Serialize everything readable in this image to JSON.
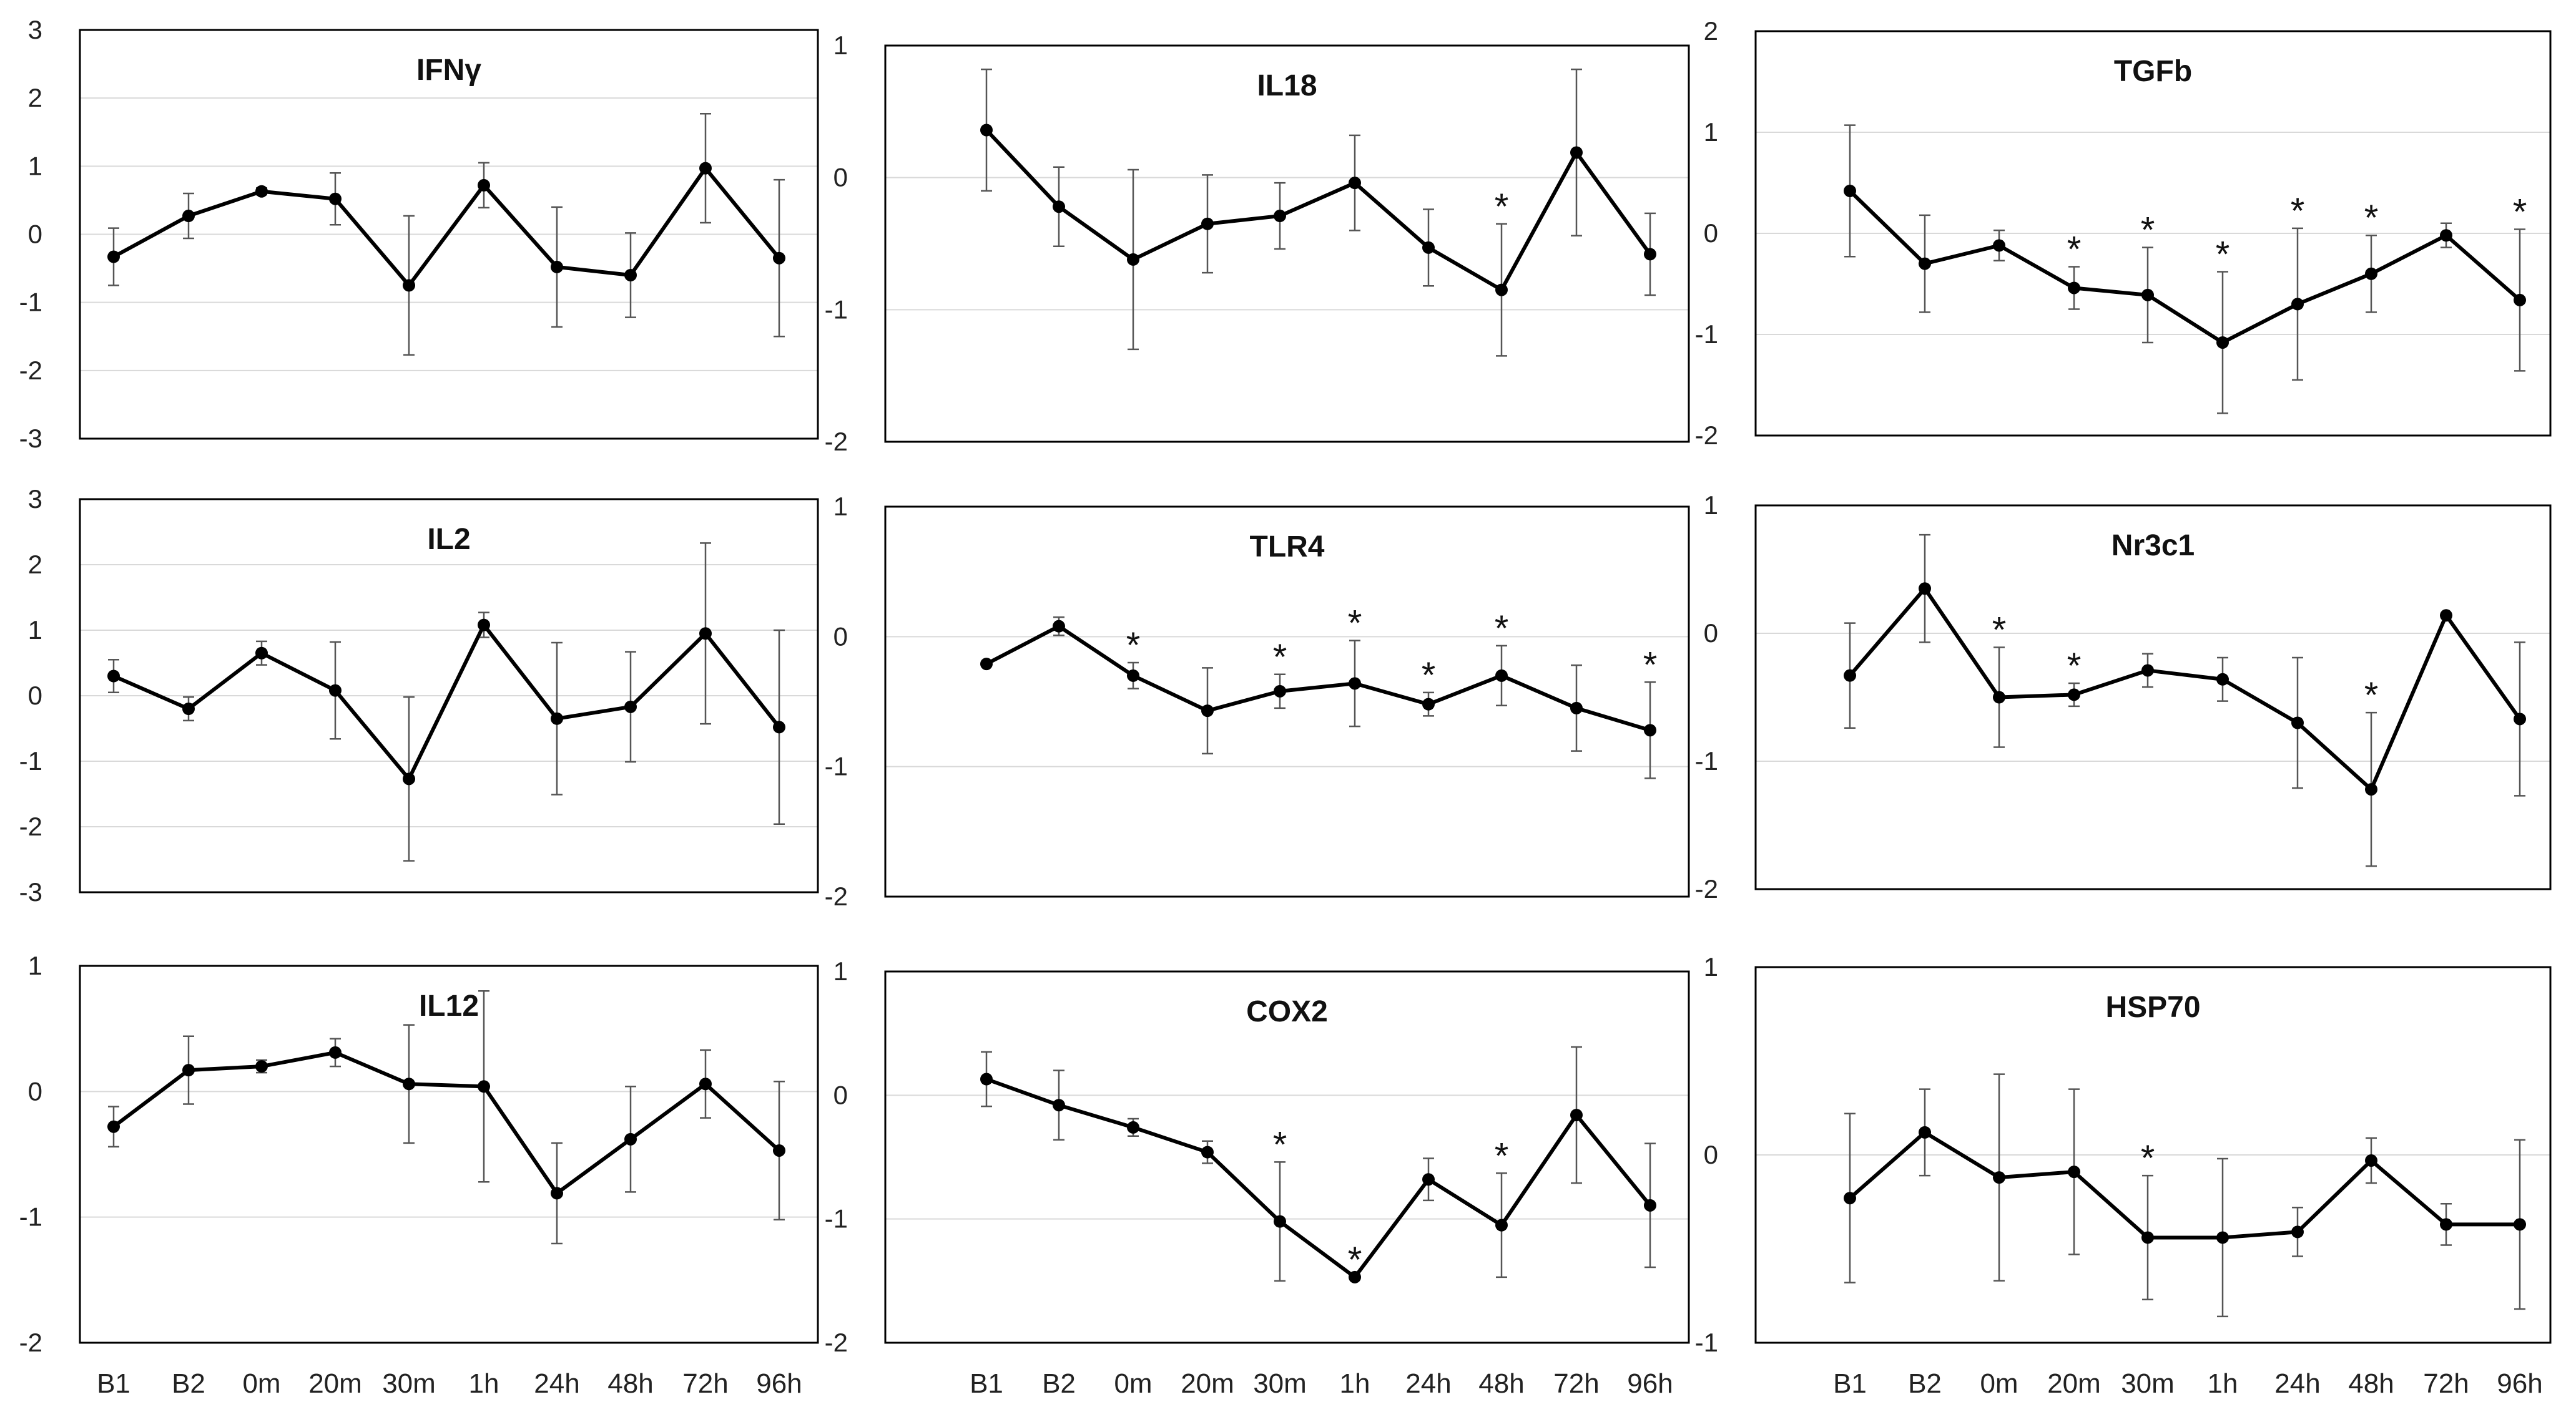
{
  "figure": {
    "categories": [
      "B1",
      "B2",
      "0m",
      "20m",
      "30m",
      "1h",
      "24h",
      "48h",
      "72h",
      "96h"
    ],
    "colors": {
      "line": "#000000",
      "errorbar": "#555555",
      "grid": "#d9d9d9",
      "frame": "#000000",
      "background": "#ffffff"
    }
  },
  "chart_data": [
    {
      "type": "line",
      "title": "IFNγ",
      "ylim": [
        -3,
        3
      ],
      "yticks": [
        3,
        2,
        1,
        0,
        -1,
        -2,
        -3
      ],
      "values": [
        -0.33,
        0.27,
        0.63,
        0.52,
        -0.75,
        0.72,
        -0.48,
        -0.6,
        0.97,
        -0.35
      ],
      "errors": [
        0.42,
        0.33,
        0.05,
        0.38,
        1.02,
        0.33,
        0.88,
        0.62,
        0.8,
        1.15
      ],
      "significant": []
    },
    {
      "type": "line",
      "title": "IL18",
      "ylim": [
        -2,
        1
      ],
      "yticks": [
        1,
        0,
        -1,
        -2
      ],
      "values": [
        0.36,
        -0.22,
        -0.62,
        -0.35,
        -0.29,
        -0.04,
        -0.53,
        -0.85,
        0.19,
        -0.58
      ],
      "errors": [
        0.46,
        0.3,
        0.68,
        0.37,
        0.25,
        0.36,
        0.29,
        0.5,
        0.63,
        0.31
      ],
      "significant": [
        "48h"
      ]
    },
    {
      "type": "line",
      "title": "TGFb",
      "ylim": [
        -2,
        2
      ],
      "yticks": [
        2,
        1,
        0,
        -1,
        -2
      ],
      "values": [
        0.42,
        -0.3,
        -0.12,
        -0.54,
        -0.61,
        -1.08,
        -0.7,
        -0.4,
        -0.02,
        -0.66
      ],
      "errors": [
        0.65,
        0.48,
        0.15,
        0.21,
        0.47,
        0.7,
        0.75,
        0.38,
        0.12,
        0.7
      ],
      "significant": [
        "20m",
        "30m",
        "1h",
        "24h",
        "48h",
        "96h"
      ]
    },
    {
      "type": "line",
      "title": "IL2",
      "ylim": [
        -3,
        3
      ],
      "yticks": [
        3,
        2,
        1,
        0,
        -1,
        -2,
        -3
      ],
      "values": [
        0.3,
        -0.2,
        0.65,
        0.08,
        -1.27,
        1.08,
        -0.35,
        -0.17,
        0.95,
        -0.48
      ],
      "errors": [
        0.25,
        0.18,
        0.18,
        0.74,
        1.25,
        0.19,
        1.16,
        0.84,
        1.38,
        1.48
      ],
      "significant": []
    },
    {
      "type": "line",
      "title": "TLR4",
      "ylim": [
        -2,
        1
      ],
      "yticks": [
        1,
        0,
        -1,
        -2
      ],
      "values": [
        -0.21,
        0.08,
        -0.3,
        -0.57,
        -0.42,
        -0.36,
        -0.52,
        -0.3,
        -0.55,
        -0.72
      ],
      "errors": [
        0.0,
        0.07,
        0.1,
        0.33,
        0.13,
        0.33,
        0.09,
        0.23,
        0.33,
        0.37
      ],
      "significant": [
        "0m",
        "30m",
        "1h",
        "24h",
        "48h",
        "96h"
      ]
    },
    {
      "type": "line",
      "title": "Nr3c1",
      "ylim": [
        -2,
        1
      ],
      "yticks": [
        1,
        0,
        -1,
        -2
      ],
      "values": [
        -0.33,
        0.35,
        -0.5,
        -0.48,
        -0.29,
        -0.36,
        -0.7,
        -1.22,
        0.14,
        -0.67
      ],
      "errors": [
        0.41,
        0.42,
        0.39,
        0.09,
        0.13,
        0.17,
        0.51,
        0.6,
        0.0,
        0.6
      ],
      "significant": [
        "0m",
        "20m",
        "48h"
      ]
    },
    {
      "type": "line",
      "title": "IL12",
      "ylim": [
        -2,
        1
      ],
      "yticks": [
        1,
        0,
        -1,
        -2
      ],
      "values": [
        -0.28,
        0.17,
        0.2,
        0.31,
        0.06,
        0.04,
        -0.81,
        -0.38,
        0.06,
        -0.47
      ],
      "errors": [
        0.16,
        0.27,
        0.05,
        0.11,
        0.47,
        0.76,
        0.4,
        0.42,
        0.27,
        0.55
      ],
      "significant": []
    },
    {
      "type": "line",
      "title": "COX2",
      "ylim": [
        -2,
        1
      ],
      "yticks": [
        1,
        0,
        -1,
        -2
      ],
      "values": [
        0.13,
        -0.08,
        -0.26,
        -0.46,
        -1.02,
        -1.47,
        -0.68,
        -1.05,
        -0.16,
        -0.89
      ],
      "errors": [
        0.22,
        0.28,
        0.07,
        0.09,
        0.48,
        0.0,
        0.17,
        0.42,
        0.55,
        0.5
      ],
      "significant": [
        "30m",
        "1h",
        "48h"
      ]
    },
    {
      "type": "line",
      "title": "HSP70",
      "ylim": [
        -1,
        1
      ],
      "yticks": [
        1,
        0,
        -1
      ],
      "values": [
        -0.23,
        0.12,
        -0.12,
        -0.09,
        -0.44,
        -0.44,
        -0.41,
        -0.03,
        -0.37,
        -0.37
      ],
      "errors": [
        0.45,
        0.23,
        0.55,
        0.44,
        0.33,
        0.42,
        0.13,
        0.12,
        0.11,
        0.45
      ],
      "significant": [
        "30m"
      ]
    }
  ]
}
